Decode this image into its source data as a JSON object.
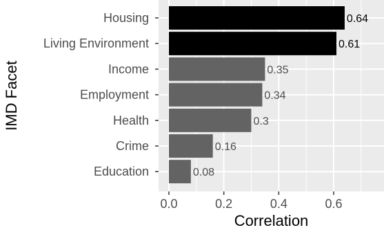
{
  "chart_data": {
    "type": "bar",
    "orientation": "horizontal",
    "xlabel": "Correlation",
    "ylabel": "IMD Facet",
    "xlim": [
      -0.02,
      0.75
    ],
    "x_ticks": [
      0.0,
      0.2,
      0.4,
      0.6
    ],
    "x_tick_labels": [
      "0.0",
      "0.2",
      "0.4",
      "0.6"
    ],
    "grid": true,
    "legend": "none",
    "categories": [
      "Housing",
      "Living Environment",
      "Income",
      "Employment",
      "Health",
      "Crime",
      "Education"
    ],
    "values": [
      0.64,
      0.61,
      0.35,
      0.34,
      0.3,
      0.16,
      0.08
    ],
    "value_labels": [
      "0.64",
      "0.61",
      "0.35",
      "0.34",
      "0.3",
      "0.16",
      "0.08"
    ],
    "highlighted": [
      true,
      true,
      false,
      false,
      false,
      false,
      false
    ],
    "colors": {
      "highlight_bar": "#000000",
      "normal_bar": "#636363",
      "panel_background": "#ebebeb",
      "grid_line": "#ffffff",
      "tick_label": "#4d4d4d",
      "highlight_label": "#000000",
      "normal_label": "#4d4d4d"
    }
  }
}
